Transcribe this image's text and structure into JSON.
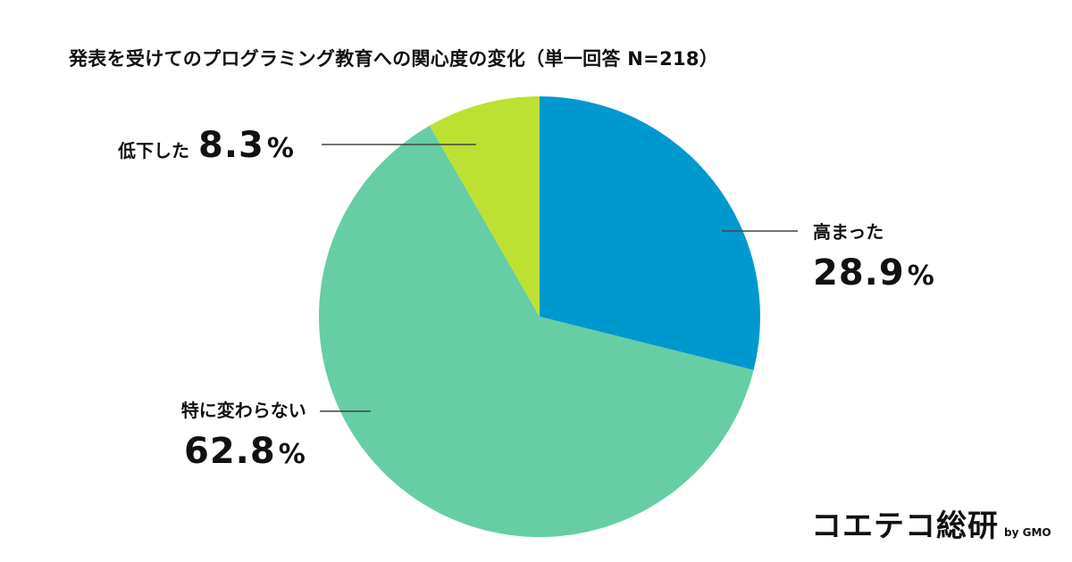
{
  "chart_data": {
    "type": "pie",
    "title": "発表を受けてのプログラミング教育への関心度の変化（単一回答 N=218）",
    "start_angle_deg": 0,
    "direction": "clockwise",
    "slices": [
      {
        "key": "high",
        "label": "高まった",
        "value": 28.9,
        "value_text": "28.9",
        "color": "#0099CF"
      },
      {
        "key": "same",
        "label": "特に変わらない",
        "value": 62.8,
        "value_text": "62.8",
        "color": "#66CDA5"
      },
      {
        "key": "low",
        "label": "低下した",
        "value": 8.3,
        "value_text": "8.3",
        "color": "#BCE132"
      }
    ],
    "unit": "%",
    "leader_line_color": "#444444"
  },
  "brand": {
    "name": "コエテコ総研",
    "by": "by GMO"
  }
}
